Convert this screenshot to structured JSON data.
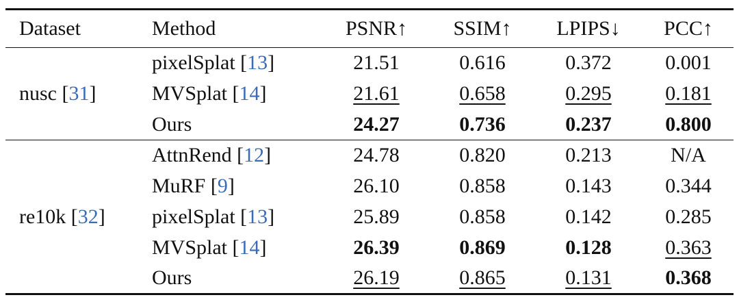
{
  "table": {
    "header": [
      "Dataset",
      "Method",
      "PSNR↑",
      "SSIM↑",
      "LPIPS↓",
      "PCC↑"
    ],
    "cite_color": "#3a6db5",
    "groups": [
      {
        "dataset": [
          "nusc [",
          "31",
          "]"
        ],
        "rows": [
          {
            "method": [
              "pixelSplat [",
              "13",
              "]"
            ],
            "values": [
              "21.51",
              "0.616",
              "0.372",
              "0.001"
            ]
          },
          {
            "method": [
              "MVSplat [",
              "14",
              "]"
            ],
            "values": [
              "21.61",
              "0.658",
              "0.295",
              "0.181"
            ],
            "underline": [
              0,
              1,
              2,
              3
            ]
          },
          {
            "method": [
              "Ours"
            ],
            "values": [
              "24.27",
              "0.736",
              "0.237",
              "0.800"
            ],
            "bold": [
              0,
              1,
              2,
              3
            ]
          }
        ]
      },
      {
        "dataset": [
          "re10k [",
          "32",
          "]"
        ],
        "rows": [
          {
            "method": [
              "AttnRend [",
              "12",
              "]"
            ],
            "values": [
              "24.78",
              "0.820",
              "0.213",
              "N/A"
            ]
          },
          {
            "method": [
              "MuRF [",
              "9",
              "]"
            ],
            "values": [
              "26.10",
              "0.858",
              "0.143",
              "0.344"
            ]
          },
          {
            "method": [
              "pixelSplat [",
              "13",
              "]"
            ],
            "values": [
              "25.89",
              "0.858",
              "0.142",
              "0.285"
            ]
          },
          {
            "method": [
              "MVSplat [",
              "14",
              "]"
            ],
            "values": [
              "26.39",
              "0.869",
              "0.128",
              "0.363"
            ],
            "bold": [
              0,
              1,
              2
            ],
            "underline": [
              3
            ]
          },
          {
            "method": [
              "Ours"
            ],
            "values": [
              "26.19",
              "0.865",
              "0.131",
              "0.368"
            ],
            "underline": [
              0,
              1,
              2
            ],
            "bold": [
              3
            ]
          }
        ]
      }
    ]
  }
}
